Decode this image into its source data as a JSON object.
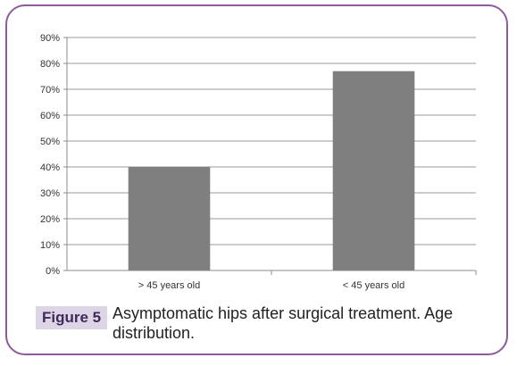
{
  "chart_data": {
    "type": "bar",
    "categories": [
      "> 45 years old",
      "< 45 years old"
    ],
    "values": [
      40,
      77
    ],
    "ylim": [
      0,
      90
    ],
    "yticks": [
      "0%",
      "10%",
      "20%",
      "30%",
      "40%",
      "50%",
      "60%",
      "70%",
      "80%",
      "90%"
    ],
    "bar_color": "#7f7f7f",
    "grid": true
  },
  "caption": {
    "label": "Figure 5",
    "text": "Asymptomatic hips after surgical treatment. Age distribution."
  },
  "colors": {
    "frame": "#8e5a9b",
    "label_bg": "#ddd5e6",
    "label_text": "#3c2c59"
  }
}
